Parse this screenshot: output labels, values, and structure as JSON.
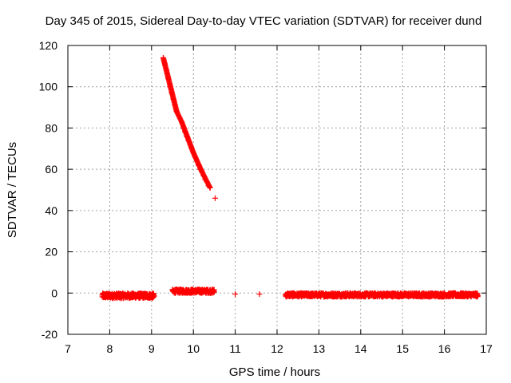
{
  "chart_data": {
    "type": "scatter",
    "title": "Day 345 of 2015, Sidereal Day-to-day VTEC variation (SDTVAR) for receiver dund",
    "xlabel": "GPS time / hours",
    "ylabel": "SDTVAR / TECUs",
    "xlim": [
      7,
      17
    ],
    "ylim": [
      -20,
      120
    ],
    "x_ticks": [
      7,
      8,
      9,
      10,
      11,
      12,
      13,
      14,
      15,
      16,
      17
    ],
    "y_ticks": [
      -20,
      0,
      20,
      40,
      60,
      80,
      100,
      120
    ],
    "x_tick_labels": [
      "7",
      "8",
      "9",
      "10",
      "11",
      "12",
      "13",
      "14",
      "15",
      "16",
      "17"
    ],
    "y_tick_labels": [
      "-20",
      "0",
      "20",
      "40",
      "60",
      "80",
      "100",
      "120"
    ],
    "grid": true,
    "marker": "+",
    "color": "#ff0000",
    "series": [
      {
        "name": "SDTVAR",
        "x": [
          7.85,
          7.95,
          8.05,
          8.15,
          8.25,
          8.35,
          8.45,
          8.55,
          8.65,
          8.75,
          8.85,
          8.95,
          9.0,
          9.28,
          9.32,
          9.36,
          9.4,
          9.44,
          9.48,
          9.52,
          9.56,
          9.6,
          9.52,
          9.58,
          9.64,
          9.7,
          9.76,
          9.82,
          9.88,
          9.94,
          10.0,
          10.06,
          10.12,
          10.18,
          10.24,
          10.3,
          10.36,
          10.42,
          10.48,
          9.72,
          9.76,
          9.8,
          9.84,
          9.88,
          9.92,
          9.96,
          10.0,
          10.04,
          10.08,
          10.12,
          10.16,
          10.2,
          10.24,
          10.28,
          10.32,
          10.36,
          10.4,
          10.52,
          11.0,
          11.58,
          12.25,
          12.4,
          12.6,
          12.8,
          13.0,
          13.2,
          13.4,
          13.6,
          13.8,
          14.0,
          14.2,
          14.4,
          14.6,
          14.8,
          15.0,
          15.2,
          15.4,
          15.6,
          15.8,
          16.0,
          16.2,
          16.4,
          16.6,
          16.72
        ],
        "y": [
          -2.0,
          -1.5,
          -1.8,
          -1.2,
          -2.5,
          -1.0,
          -1.5,
          -0.5,
          -1.2,
          -0.8,
          -1.0,
          -1.5,
          -2.0,
          114,
          111,
          108,
          104,
          100,
          97,
          94,
          91,
          88,
          1.0,
          0.5,
          1.2,
          0.8,
          1.5,
          1.0,
          1.2,
          0.6,
          1.0,
          0.8,
          1.4,
          0.5,
          0.9,
          0.7,
          0.4,
          0.6,
          0.5,
          83,
          80,
          78,
          76,
          74,
          72,
          70,
          68,
          66,
          64,
          62,
          60,
          59,
          57,
          55,
          54,
          52,
          51,
          46,
          -0.5,
          -0.5,
          -0.2,
          -0.1,
          -0.4,
          -0.3,
          -0.5,
          -0.8,
          -0.6,
          -1.0,
          -1.2,
          -1.0,
          -1.4,
          -1.1,
          -1.5,
          -1.3,
          -1.6,
          -1.2,
          -1.4,
          -1.0,
          -1.1,
          -1.6,
          -1.3,
          -1.5,
          -1.2,
          -1.0
        ]
      }
    ],
    "dense_segments": [
      {
        "x0": 7.82,
        "x1": 9.06,
        "y_center": -1.3,
        "spread": 1.2,
        "count": 300
      },
      {
        "x0": 9.5,
        "x1": 10.5,
        "y_center": 0.9,
        "spread": 0.9,
        "count": 220
      },
      {
        "x0": 12.2,
        "x1": 16.8,
        "y_center": -0.9,
        "spread": 0.9,
        "count": 900
      }
    ]
  }
}
